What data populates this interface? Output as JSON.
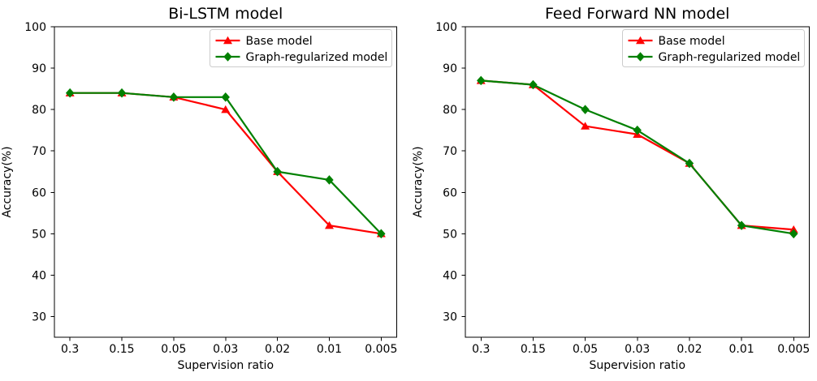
{
  "figure": {
    "background_color": "#ffffff",
    "text_color": "#000000",
    "frame_color": "#000000",
    "legend_border_color": "#cccccc",
    "legend_background_color": "#ffffff"
  },
  "chart_data": [
    {
      "type": "line",
      "title": "Bi-LSTM model",
      "xlabel": "Supervision ratio",
      "ylabel": "Accuracy(%)",
      "x_axis_type": "categorical",
      "categories": [
        "0.3",
        "0.15",
        "0.05",
        "0.03",
        "0.02",
        "0.01",
        "0.005"
      ],
      "yticks": [
        100,
        90,
        80,
        70,
        60,
        50,
        40,
        30
      ],
      "ylim": [
        25,
        100
      ],
      "grid": false,
      "legend_position": "upper right",
      "series": [
        {
          "name": "Base model",
          "color": "#ff0000",
          "marker": "triangle-up",
          "values": [
            84,
            84,
            83,
            80,
            65,
            52,
            50
          ]
        },
        {
          "name": "Graph-regularized model",
          "color": "#008000",
          "marker": "diamond",
          "values": [
            84,
            84,
            83,
            83,
            65,
            63,
            50
          ]
        }
      ]
    },
    {
      "type": "line",
      "title": "Feed Forward NN model",
      "xlabel": "Supervision ratio",
      "ylabel": "Accuracy(%)",
      "x_axis_type": "categorical",
      "categories": [
        "0.3",
        "0.15",
        "0.05",
        "0.03",
        "0.02",
        "0.01",
        "0.005"
      ],
      "yticks": [
        100,
        90,
        80,
        70,
        60,
        50,
        40,
        30
      ],
      "ylim": [
        25,
        100
      ],
      "grid": false,
      "legend_position": "upper right",
      "series": [
        {
          "name": "Base model",
          "color": "#ff0000",
          "marker": "triangle-up",
          "values": [
            87,
            86,
            76,
            74,
            67,
            52,
            51
          ]
        },
        {
          "name": "Graph-regularized model",
          "color": "#008000",
          "marker": "diamond",
          "values": [
            87,
            86,
            80,
            75,
            67,
            52,
            50
          ]
        }
      ]
    }
  ]
}
